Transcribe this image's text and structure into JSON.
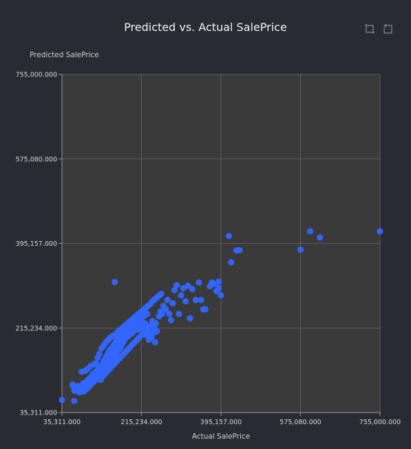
{
  "chart_data": {
    "type": "scatter",
    "title": "Predicted vs. Actual SalePrice",
    "xlabel": "Actual SalePrice",
    "ylabel": "Predicted SalePrice",
    "xlim": [
      35311,
      755000
    ],
    "ylim": [
      35311,
      755000
    ],
    "x_ticks": [
      "35,311.000",
      "215,234.000",
      "395,157.000",
      "575,080.000",
      "755,000.000"
    ],
    "y_ticks": [
      "35,311.000",
      "215,234.000",
      "395,157.000",
      "575,080.000",
      "755,000.000"
    ],
    "grid": true,
    "point_color": "#3366ff",
    "series": [
      {
        "points": [
          [
            35311,
            62000
          ],
          [
            60000,
            95000
          ],
          [
            63000,
            60000
          ],
          [
            65000,
            82000
          ],
          [
            70000,
            85000
          ],
          [
            73000,
            92000
          ],
          [
            75000,
            78000
          ],
          [
            78000,
            84000
          ],
          [
            80000,
            90000
          ],
          [
            82000,
            86000
          ],
          [
            84000,
            98000
          ],
          [
            85000,
            80000
          ],
          [
            87000,
            94000
          ],
          [
            88000,
            88000
          ],
          [
            90000,
            100000
          ],
          [
            91000,
            92000
          ],
          [
            92000,
            86000
          ],
          [
            94000,
            105000
          ],
          [
            95000,
            96000
          ],
          [
            96000,
            90000
          ],
          [
            98000,
            108000
          ],
          [
            99000,
            100000
          ],
          [
            100000,
            95000
          ],
          [
            102000,
            112000
          ],
          [
            103000,
            104000
          ],
          [
            104000,
            98000
          ],
          [
            105000,
            118000
          ],
          [
            106000,
            108000
          ],
          [
            108000,
            102000
          ],
          [
            109000,
            115000
          ],
          [
            110000,
            110000
          ],
          [
            111000,
            104000
          ],
          [
            112000,
            122000
          ],
          [
            113000,
            114000
          ],
          [
            114000,
            108000
          ],
          [
            115000,
            125000
          ],
          [
            116000,
            118000
          ],
          [
            117000,
            110000
          ],
          [
            118000,
            130000
          ],
          [
            119000,
            120000
          ],
          [
            120000,
            112000
          ],
          [
            121000,
            128000
          ],
          [
            122000,
            118000
          ],
          [
            123000,
            105000
          ],
          [
            124000,
            135000
          ],
          [
            125000,
            126000
          ],
          [
            126000,
            116000
          ],
          [
            127000,
            140000
          ],
          [
            128000,
            130000
          ],
          [
            129000,
            122000
          ],
          [
            130000,
            145000
          ],
          [
            131000,
            135000
          ],
          [
            132000,
            125000
          ],
          [
            133000,
            150000
          ],
          [
            134000,
            140000
          ],
          [
            135000,
            130000
          ],
          [
            136000,
            155000
          ],
          [
            137000,
            145000
          ],
          [
            138000,
            132000
          ],
          [
            139000,
            160000
          ],
          [
            140000,
            150000
          ],
          [
            141000,
            138000
          ],
          [
            142000,
            165000
          ],
          [
            143000,
            152000
          ],
          [
            144000,
            140000
          ],
          [
            145000,
            170000
          ],
          [
            146000,
            158000
          ],
          [
            147000,
            145000
          ],
          [
            148000,
            172000
          ],
          [
            149000,
            162000
          ],
          [
            150000,
            150000
          ],
          [
            151000,
            178000
          ],
          [
            152000,
            165000
          ],
          [
            153000,
            155000
          ],
          [
            154000,
            180000
          ],
          [
            155000,
            170000
          ],
          [
            156000,
            158000
          ],
          [
            157000,
            185000
          ],
          [
            158000,
            175000
          ],
          [
            159000,
            162000
          ],
          [
            160000,
            190000
          ],
          [
            161000,
            178000
          ],
          [
            162000,
            168000
          ],
          [
            163000,
            195000
          ],
          [
            164000,
            182000
          ],
          [
            165000,
            170000
          ],
          [
            166000,
            198000
          ],
          [
            167000,
            188000
          ],
          [
            168000,
            175000
          ],
          [
            169000,
            205000
          ],
          [
            170000,
            192000
          ],
          [
            171000,
            180000
          ],
          [
            172000,
            210000
          ],
          [
            173000,
            198000
          ],
          [
            174000,
            185000
          ],
          [
            175000,
            212000
          ],
          [
            176000,
            200000
          ],
          [
            177000,
            190000
          ],
          [
            178000,
            215000
          ],
          [
            179000,
            205000
          ],
          [
            180000,
            195000
          ],
          [
            182000,
            220000
          ],
          [
            184000,
            208000
          ],
          [
            185000,
            198000
          ],
          [
            187000,
            222000
          ],
          [
            188000,
            212000
          ],
          [
            190000,
            202000
          ],
          [
            192000,
            225000
          ],
          [
            194000,
            215000
          ],
          [
            195000,
            205000
          ],
          [
            197000,
            218000
          ],
          [
            198000,
            228000
          ],
          [
            200000,
            210000
          ],
          [
            202000,
            230000
          ],
          [
            204000,
            220000
          ],
          [
            206000,
            212000
          ],
          [
            208000,
            235000
          ],
          [
            210000,
            225000
          ],
          [
            212000,
            215000
          ],
          [
            214000,
            238000
          ],
          [
            216000,
            228000
          ],
          [
            218000,
            220000
          ],
          [
            220000,
            240000
          ],
          [
            222000,
            210000
          ],
          [
            224000,
            225000
          ],
          [
            226000,
            200000
          ],
          [
            228000,
            245000
          ],
          [
            230000,
            215000
          ],
          [
            232000,
            190000
          ],
          [
            234000,
            205000
          ],
          [
            236000,
            220000
          ],
          [
            238000,
            196000
          ],
          [
            240000,
            230000
          ],
          [
            242000,
            205000
          ],
          [
            244000,
            215000
          ],
          [
            246000,
            185000
          ],
          [
            248000,
            225000
          ],
          [
            250000,
            208000
          ],
          [
            255000,
            240000
          ],
          [
            258000,
            250000
          ],
          [
            262000,
            245000
          ],
          [
            265000,
            262000
          ],
          [
            270000,
            255000
          ],
          [
            274000,
            275000
          ],
          [
            278000,
            245000
          ],
          [
            282000,
            232000
          ],
          [
            286000,
            268000
          ],
          [
            290000,
            296000
          ],
          [
            295000,
            306000
          ],
          [
            300000,
            245000
          ],
          [
            305000,
            285000
          ],
          [
            310000,
            300000
          ],
          [
            315000,
            272000
          ],
          [
            320000,
            305000
          ],
          [
            325000,
            236000
          ],
          [
            330000,
            298000
          ],
          [
            338000,
            275000
          ],
          [
            345000,
            312000
          ],
          [
            350000,
            275000
          ],
          [
            355000,
            255000
          ],
          [
            360000,
            255000
          ],
          [
            370000,
            304000
          ],
          [
            375000,
            312000
          ],
          [
            380000,
            309000
          ],
          [
            385000,
            294000
          ],
          [
            390000,
            300000
          ],
          [
            395000,
            285000
          ],
          [
            390000,
            314000
          ],
          [
            155000,
            313000
          ],
          [
            88000,
            124000
          ],
          [
            80000,
            122000
          ],
          [
            60000,
            92000
          ],
          [
            63000,
            82000
          ],
          [
            93000,
            128000
          ],
          [
            100000,
            134000
          ],
          [
            108000,
            138000
          ],
          [
            112000,
            140000
          ],
          [
            116000,
            152000
          ],
          [
            120000,
            160000
          ],
          [
            125000,
            172000
          ],
          [
            130000,
            178000
          ],
          [
            135000,
            185000
          ],
          [
            140000,
            190000
          ],
          [
            145000,
            195000
          ],
          [
            150000,
            198000
          ],
          [
            155000,
            200000
          ],
          [
            160000,
            205000
          ],
          [
            165000,
            210000
          ],
          [
            170000,
            214000
          ],
          [
            175000,
            218000
          ],
          [
            180000,
            222000
          ],
          [
            185000,
            226000
          ],
          [
            190000,
            230000
          ],
          [
            195000,
            234000
          ],
          [
            200000,
            238000
          ],
          [
            205000,
            242000
          ],
          [
            210000,
            246000
          ],
          [
            215000,
            250000
          ],
          [
            220000,
            254000
          ],
          [
            225000,
            258000
          ],
          [
            230000,
            262000
          ],
          [
            235000,
            266000
          ],
          [
            240000,
            272000
          ],
          [
            245000,
            276000
          ],
          [
            250000,
            280000
          ],
          [
            255000,
            284000
          ],
          [
            260000,
            288000
          ],
          [
            125000,
            110000
          ],
          [
            130000,
            115000
          ],
          [
            135000,
            120000
          ],
          [
            140000,
            125000
          ],
          [
            145000,
            130000
          ],
          [
            150000,
            135000
          ],
          [
            155000,
            140000
          ],
          [
            160000,
            145000
          ],
          [
            165000,
            150000
          ],
          [
            170000,
            155000
          ],
          [
            175000,
            160000
          ],
          [
            180000,
            165000
          ],
          [
            185000,
            170000
          ],
          [
            190000,
            175000
          ],
          [
            195000,
            180000
          ],
          [
            200000,
            185000
          ],
          [
            205000,
            190000
          ],
          [
            210000,
            195000
          ],
          [
            215000,
            200000
          ],
          [
            220000,
            205000
          ],
          [
            225000,
            210000
          ],
          [
            430000,
            380000
          ],
          [
            437000,
            381000
          ],
          [
            413000,
            411000
          ],
          [
            418000,
            355000
          ],
          [
            575000,
            382000
          ],
          [
            619000,
            408000
          ],
          [
            597000,
            421000
          ],
          [
            755000,
            421000
          ]
        ]
      }
    ]
  }
}
